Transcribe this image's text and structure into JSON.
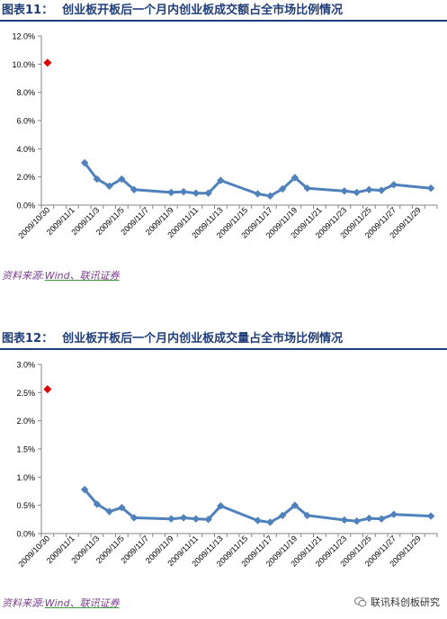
{
  "figures": [
    {
      "title_num": "图表11：",
      "title_text": "创业板开板后一个月内创业板成交额占全市场比例情况",
      "source_prefix": "资料来源:",
      "source_underlined": "Wind、联讯证券"
    },
    {
      "title_num": "图表12：",
      "title_text": "创业板开板后一个月内创业板成交量占全市场比例情况",
      "source_prefix": "资料来源:",
      "source_underlined": "Wind、联讯证券"
    }
  ],
  "watermark": {
    "text": "联讯科创板研究",
    "icon": "wechat-icon"
  },
  "colors": {
    "title": "#1f3d7a",
    "line": "#4f81bd",
    "highlight": "#e00000",
    "source": "#7a3b8f"
  },
  "chart_data": [
    {
      "type": "line",
      "title": "",
      "xlabel": "",
      "ylabel": "",
      "ylim": [
        0,
        12
      ],
      "y_ticks": [
        0,
        2,
        4,
        6,
        8,
        10,
        12
      ],
      "y_tick_labels": [
        "0.0%",
        "2.0%",
        "4.0%",
        "6.0%",
        "8.0%",
        "10.0%",
        "12.0%"
      ],
      "x_tick_labels": [
        "2009/10/30",
        "2009/11/1",
        "2009/11/3",
        "2009/11/5",
        "2009/11/7",
        "2009/11/9",
        "2009/11/11",
        "2009/11/13",
        "2009/11/15",
        "2009/11/17",
        "2009/11/19",
        "2009/11/21",
        "2009/11/23",
        "2009/11/25",
        "2009/11/27",
        "2009/11/29"
      ],
      "x_start": "2009-10-30",
      "highlight_point": {
        "x": "2009-10-30",
        "y": 10.1
      },
      "series": [
        {
          "points": [
            {
              "x": "2009-11-02",
              "y": 3.0
            },
            {
              "x": "2009-11-03",
              "y": 1.85
            },
            {
              "x": "2009-11-04",
              "y": 1.35
            },
            {
              "x": "2009-11-05",
              "y": 1.85
            },
            {
              "x": "2009-11-06",
              "y": 1.1
            },
            {
              "x": "2009-11-09",
              "y": 0.9
            },
            {
              "x": "2009-11-10",
              "y": 0.95
            },
            {
              "x": "2009-11-11",
              "y": 0.85
            },
            {
              "x": "2009-11-12",
              "y": 0.85
            },
            {
              "x": "2009-11-13",
              "y": 1.75
            },
            {
              "x": "2009-11-16",
              "y": 0.8
            },
            {
              "x": "2009-11-17",
              "y": 0.65
            },
            {
              "x": "2009-11-18",
              "y": 1.15
            },
            {
              "x": "2009-11-19",
              "y": 1.95
            },
            {
              "x": "2009-11-20",
              "y": 1.2
            },
            {
              "x": "2009-11-23",
              "y": 1.0
            },
            {
              "x": "2009-11-24",
              "y": 0.9
            },
            {
              "x": "2009-11-25",
              "y": 1.1
            },
            {
              "x": "2009-11-26",
              "y": 1.05
            },
            {
              "x": "2009-11-27",
              "y": 1.45
            },
            {
              "x": "2009-11-30",
              "y": 1.2
            }
          ]
        }
      ]
    },
    {
      "type": "line",
      "title": "",
      "xlabel": "",
      "ylabel": "",
      "ylim": [
        0,
        3
      ],
      "y_ticks": [
        0,
        0.5,
        1,
        1.5,
        2,
        2.5,
        3
      ],
      "y_tick_labels": [
        "0.0%",
        "0.5%",
        "1.0%",
        "1.5%",
        "2.0%",
        "2.5%",
        "3.0%"
      ],
      "x_tick_labels": [
        "2009/10/30",
        "2009/11/1",
        "2009/11/3",
        "2009/11/5",
        "2009/11/7",
        "2009/11/9",
        "2009/11/11",
        "2009/11/13",
        "2009/11/15",
        "2009/11/17",
        "2009/11/19",
        "2009/11/21",
        "2009/11/23",
        "2009/11/25",
        "2009/11/27",
        "2009/11/29"
      ],
      "x_start": "2009-10-30",
      "highlight_point": {
        "x": "2009-10-30",
        "y": 2.56
      },
      "series": [
        {
          "points": [
            {
              "x": "2009-11-02",
              "y": 0.78
            },
            {
              "x": "2009-11-03",
              "y": 0.52
            },
            {
              "x": "2009-11-04",
              "y": 0.39
            },
            {
              "x": "2009-11-05",
              "y": 0.46
            },
            {
              "x": "2009-11-06",
              "y": 0.28
            },
            {
              "x": "2009-11-09",
              "y": 0.26
            },
            {
              "x": "2009-11-10",
              "y": 0.28
            },
            {
              "x": "2009-11-11",
              "y": 0.26
            },
            {
              "x": "2009-11-12",
              "y": 0.25
            },
            {
              "x": "2009-11-13",
              "y": 0.49
            },
            {
              "x": "2009-11-16",
              "y": 0.23
            },
            {
              "x": "2009-11-17",
              "y": 0.2
            },
            {
              "x": "2009-11-18",
              "y": 0.32
            },
            {
              "x": "2009-11-19",
              "y": 0.5
            },
            {
              "x": "2009-11-20",
              "y": 0.32
            },
            {
              "x": "2009-11-23",
              "y": 0.24
            },
            {
              "x": "2009-11-24",
              "y": 0.22
            },
            {
              "x": "2009-11-25",
              "y": 0.27
            },
            {
              "x": "2009-11-26",
              "y": 0.26
            },
            {
              "x": "2009-11-27",
              "y": 0.34
            },
            {
              "x": "2009-11-30",
              "y": 0.31
            }
          ]
        }
      ]
    }
  ]
}
